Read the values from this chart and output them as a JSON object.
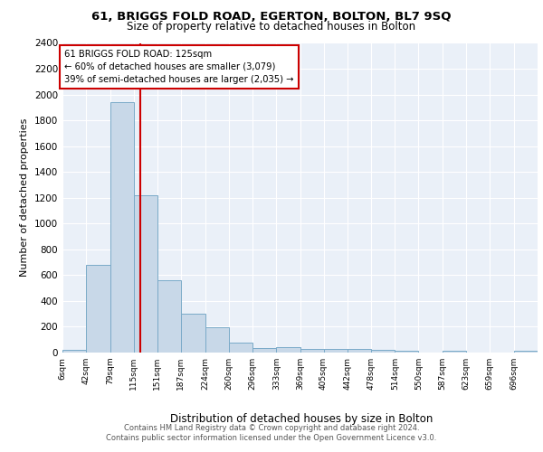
{
  "title1": "61, BRIGGS FOLD ROAD, EGERTON, BOLTON, BL7 9SQ",
  "title2": "Size of property relative to detached houses in Bolton",
  "xlabel": "Distribution of detached houses by size in Bolton",
  "ylabel": "Number of detached properties",
  "bar_edges": [
    6,
    42,
    79,
    115,
    151,
    187,
    224,
    260,
    296,
    333,
    369,
    405,
    442,
    478,
    514,
    550,
    587,
    623,
    659,
    696,
    732
  ],
  "bar_heights": [
    20,
    680,
    1940,
    1220,
    560,
    300,
    195,
    80,
    35,
    45,
    30,
    30,
    30,
    20,
    15,
    0,
    15,
    0,
    0,
    15
  ],
  "bar_color": "#c8d8e8",
  "bar_edgecolor": "#7aaac8",
  "vline_x": 125,
  "vline_color": "#cc0000",
  "ann_line1": "61 BRIGGS FOLD ROAD: 125sqm",
  "ann_line2": "← 60% of detached houses are smaller (3,079)",
  "ann_line3": "39% of semi-detached houses are larger (2,035) →",
  "annotation_box_color": "#cc0000",
  "ylim": [
    0,
    2400
  ],
  "yticks": [
    0,
    200,
    400,
    600,
    800,
    1000,
    1200,
    1400,
    1600,
    1800,
    2000,
    2200,
    2400
  ],
  "footer1": "Contains HM Land Registry data © Crown copyright and database right 2024.",
  "footer2": "Contains public sector information licensed under the Open Government Licence v3.0.",
  "plot_bg_color": "#eaf0f8"
}
